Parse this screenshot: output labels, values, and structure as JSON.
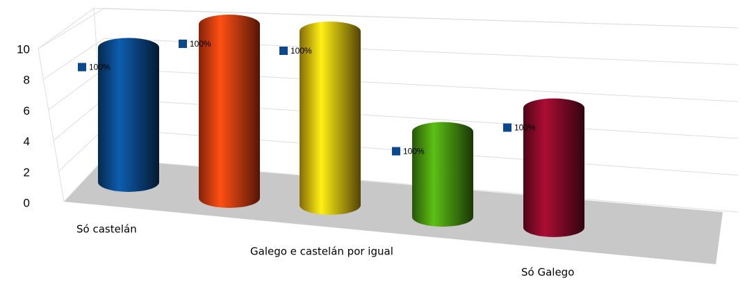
{
  "chart_data": {
    "type": "cylinder3d",
    "categories": [
      "Só castelán",
      null,
      "Galego e castelán por igual",
      null,
      "Só Galego"
    ],
    "values": [
      9,
      10,
      10,
      5,
      7
    ],
    "data_labels": [
      "100%",
      "100%",
      "100%",
      "100%",
      "100%"
    ],
    "colors": [
      "#0a4a8c",
      "#f04010",
      "#f0c010",
      "#4a9a10",
      "#8a0a2a"
    ],
    "ylim": [
      0,
      10
    ],
    "yticks": [
      0,
      2,
      4,
      6,
      8,
      10
    ],
    "grid": true
  }
}
